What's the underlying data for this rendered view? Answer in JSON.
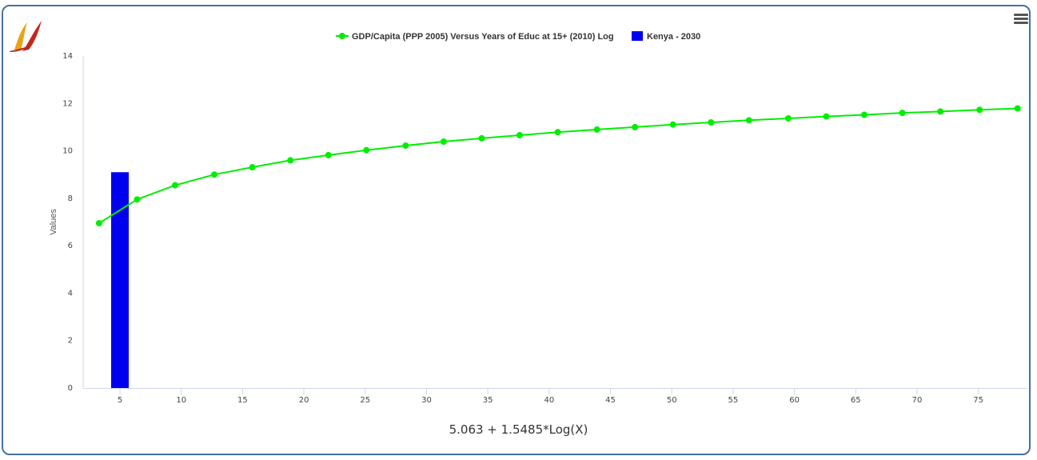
{
  "footer": {
    "formula": "5.063 + 1.5485*Log(X)"
  },
  "icons": {
    "logo": "flame-logo-icon",
    "menu": "hamburger-menu-icon"
  },
  "colors": {
    "border": "#4a6fa5",
    "line_series": "#00ee00",
    "bar_series": "#0000ee",
    "axis": "#ccd6eb",
    "text": "#333333"
  },
  "chart_data": {
    "type": "bar",
    "title": "",
    "xlabel": "",
    "ylabel": "Values",
    "xlim": [
      2,
      79
    ],
    "ylim": [
      0,
      14
    ],
    "grid": false,
    "legend_position": "top-center",
    "x_ticks": [
      5,
      10,
      15,
      20,
      25,
      30,
      35,
      40,
      45,
      50,
      55,
      60,
      65,
      70,
      75
    ],
    "y_ticks": [
      0,
      2,
      4,
      6,
      8,
      10,
      12,
      14
    ],
    "series": [
      {
        "name": "GDP/Capita (PPP 2005) Versus Years of Educ at 15+ (2010) Log",
        "type": "line",
        "color": "#00ee00",
        "x": [
          3.3,
          6.4,
          9.5,
          12.7,
          15.8,
          18.9,
          22.0,
          25.1,
          28.3,
          31.4,
          34.5,
          37.6,
          40.7,
          43.9,
          47.0,
          50.1,
          53.2,
          56.3,
          59.5,
          62.6,
          65.7,
          68.8,
          71.9,
          75.1,
          78.2
        ],
        "y": [
          6.95,
          7.95,
          8.55,
          9.0,
          9.31,
          9.6,
          9.82,
          10.03,
          10.22,
          10.39,
          10.53,
          10.66,
          10.79,
          10.9,
          11.0,
          11.11,
          11.2,
          11.29,
          11.37,
          11.45,
          11.52,
          11.6,
          11.66,
          11.73,
          11.79
        ]
      },
      {
        "name": "Kenya - 2030",
        "type": "bar",
        "color": "#0000ee",
        "x": [
          5
        ],
        "y": [
          9.1
        ]
      }
    ]
  }
}
